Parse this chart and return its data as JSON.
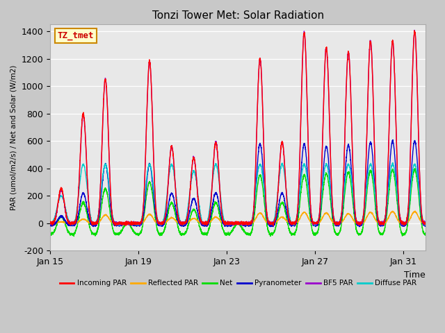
{
  "title": "Tonzi Tower Met: Solar Radiation",
  "xlabel": "Time",
  "ylabel": "PAR (umol/m2/s) / Net and Solar (W/m2)",
  "ylim": [
    -200,
    1450
  ],
  "xtick_labels": [
    "Jan 15",
    "Jan 19",
    "Jan 23",
    "Jan 27",
    "Jan 31"
  ],
  "ytick_positions": [
    -200,
    0,
    200,
    400,
    600,
    800,
    1000,
    1200,
    1400
  ],
  "plot_bg_color": "#e8e8e8",
  "fig_bg_color": "#c8c8c8",
  "series": {
    "incoming_par": {
      "color": "#ff0000",
      "label": "Incoming PAR",
      "linewidth": 1.0
    },
    "reflected_par": {
      "color": "#ffaa00",
      "label": "Reflected PAR",
      "linewidth": 1.0
    },
    "net": {
      "color": "#00dd00",
      "label": "Net",
      "linewidth": 1.0
    },
    "pyranometer": {
      "color": "#0000cc",
      "label": "Pyranometer",
      "linewidth": 1.0
    },
    "bf5_par": {
      "color": "#9900cc",
      "label": "BF5 PAR",
      "linewidth": 1.0
    },
    "diffuse_par": {
      "color": "#00cccc",
      "label": "Diffuse PAR",
      "linewidth": 1.0
    }
  },
  "annotation": {
    "text": "TZ_tmet",
    "fontsize": 9,
    "color": "#cc0000",
    "bgcolor": "#ffffcc",
    "edgecolor": "#cc8800"
  },
  "grid_color": "#ffffff",
  "incoming_peaks": [
    250,
    800,
    1050,
    0,
    1180,
    560,
    480,
    590,
    0,
    1200,
    590,
    1390,
    1280,
    1250,
    1330,
    1330,
    1400
  ],
  "bf5_peaks": [
    240,
    790,
    1050,
    0,
    1180,
    560,
    480,
    590,
    0,
    1200,
    590,
    1390,
    1280,
    1250,
    1330,
    1330,
    1400
  ],
  "diffuse_peaks": [
    200,
    430,
    430,
    0,
    430,
    430,
    380,
    430,
    0,
    430,
    430,
    430,
    430,
    430,
    430,
    430,
    430
  ],
  "pyrano_peaks": [
    50,
    220,
    430,
    0,
    430,
    220,
    180,
    220,
    0,
    580,
    220,
    580,
    560,
    570,
    590,
    600,
    600
  ],
  "net_peaks": [
    50,
    150,
    250,
    0,
    300,
    150,
    100,
    150,
    0,
    350,
    150,
    350,
    360,
    370,
    380,
    390,
    390
  ],
  "reflected_peaks": [
    10,
    30,
    60,
    0,
    65,
    40,
    35,
    45,
    0,
    75,
    45,
    80,
    75,
    70,
    80,
    85,
    85
  ],
  "net_night": -80,
  "n_pts_per_day": 200
}
